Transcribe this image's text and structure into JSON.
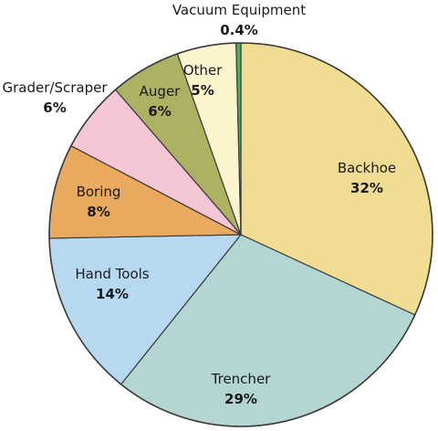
{
  "chart_data": {
    "type": "pie",
    "title": "",
    "start_angle_deg": 0,
    "direction": "clockwise",
    "slices": [
      {
        "label": "Backhoe",
        "value": 32,
        "value_text": "32%",
        "color": "#f0dc92"
      },
      {
        "label": "Trencher",
        "value": 29,
        "value_text": "29%",
        "color": "#b3d6d2"
      },
      {
        "label": "Hand Tools",
        "value": 14,
        "value_text": "14%",
        "color": "#b7d8f1"
      },
      {
        "label": "Boring",
        "value": 8,
        "value_text": "8%",
        "color": "#e9a95e"
      },
      {
        "label": "Grader/Scraper",
        "value": 6,
        "value_text": "6%",
        "color": "#f5c6d4"
      },
      {
        "label": "Auger",
        "value": 6,
        "value_text": "6%",
        "color": "#adb162"
      },
      {
        "label": "Other",
        "value": 5,
        "value_text": "5%",
        "color": "#fbf4cc"
      },
      {
        "label": "Vacuum Equipment",
        "value": 0.4,
        "value_text": "0.4%",
        "color": "#4caf63"
      }
    ],
    "border_color": "#3a3a3a"
  }
}
